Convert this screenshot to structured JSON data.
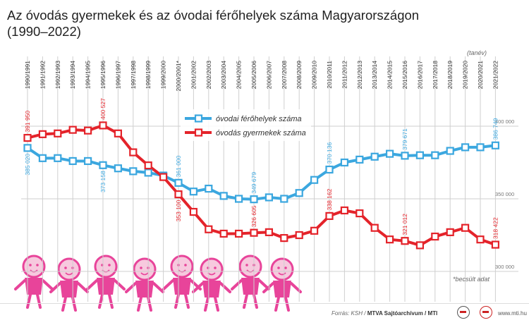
{
  "title_lines": [
    "Az óvodás gyermekek és az óvodai férőhelyek száma Magyarországon",
    "(1990–2022)"
  ],
  "unit_label": "(tanév)",
  "footnote": "*becsült adat",
  "footer": {
    "source_prefix": "Forrás: KSH / ",
    "source_bold": "MTVA Sajtóarchívum / MTI",
    "site": "www.mti.hu"
  },
  "colors": {
    "places": "#3ba7df",
    "children": "#e4232a",
    "grid": "#cfcfcf",
    "kids": "#e8449a",
    "kids_light": "#f7c9de"
  },
  "chart_data": {
    "type": "line",
    "categories": [
      "1990/1991",
      "1991/1992",
      "1992/1993",
      "1993/1994",
      "1994/1995",
      "1995/1996",
      "1996/1997",
      "1997/1998",
      "1998/1999",
      "1999/2000",
      "2000/2001*",
      "2001/2002",
      "2002/2003",
      "2003/2004",
      "2004/2005",
      "2005/2006",
      "2006/2007",
      "2007/2008",
      "2008/2009",
      "2009/2010",
      "2010/2011",
      "2011/2012",
      "2012/2013",
      "2013/2014",
      "2014/2015",
      "2015/2016",
      "2016/2017",
      "2017/2018",
      "2018/2019",
      "2019/2020",
      "2020/2021",
      "2021/2022"
    ],
    "ylim": [
      300000,
      420000
    ],
    "yticks": [
      "400 000",
      "350 000",
      "300 000"
    ],
    "series": [
      {
        "name": "óvodai férőhelyek száma",
        "key": "places",
        "values": [
          385020,
          378000,
          378000,
          376000,
          376000,
          373158,
          371000,
          369000,
          368000,
          366000,
          361000,
          355000,
          357000,
          352000,
          350000,
          349679,
          351000,
          350000,
          354000,
          363000,
          370136,
          375000,
          377000,
          379000,
          381000,
          379671,
          380000,
          380000,
          383000,
          385500,
          385500,
          386749
        ]
      },
      {
        "name": "óvodás gyermekek száma",
        "key": "children",
        "values": [
          391950,
          394500,
          395000,
          397500,
          397000,
          400527,
          395000,
          382000,
          373000,
          365000,
          353100,
          341000,
          329000,
          326000,
          326000,
          326605,
          327000,
          323000,
          325000,
          328000,
          338162,
          342000,
          340000,
          330000,
          322000,
          321012,
          318000,
          324000,
          327000,
          330000,
          322000,
          318422
        ]
      }
    ],
    "labels": [
      {
        "text": "391 950",
        "series": "children",
        "index": 0,
        "pos": "above"
      },
      {
        "text": "400 527",
        "series": "children",
        "index": 5,
        "pos": "above"
      },
      {
        "text": "353 100",
        "series": "children",
        "index": 10,
        "pos": "below"
      },
      {
        "text": "326 605",
        "series": "children",
        "index": 15,
        "pos": "above"
      },
      {
        "text": "338 162",
        "series": "children",
        "index": 20,
        "pos": "above"
      },
      {
        "text": "321 012",
        "series": "children",
        "index": 25,
        "pos": "above"
      },
      {
        "text": "318 422",
        "series": "children",
        "index": 31,
        "pos": "above"
      },
      {
        "text": "385 020",
        "series": "places",
        "index": 0,
        "pos": "below"
      },
      {
        "text": "373 158",
        "series": "places",
        "index": 5,
        "pos": "below"
      },
      {
        "text": "361 000",
        "series": "places",
        "index": 10,
        "pos": "above"
      },
      {
        "text": "349 679",
        "series": "places",
        "index": 15,
        "pos": "above"
      },
      {
        "text": "370 136",
        "series": "places",
        "index": 20,
        "pos": "above"
      },
      {
        "text": "379 671",
        "series": "places",
        "index": 25,
        "pos": "above"
      },
      {
        "text": "386 749",
        "series": "places",
        "index": 31,
        "pos": "above"
      }
    ],
    "legend": "top-center",
    "grid": true
  }
}
